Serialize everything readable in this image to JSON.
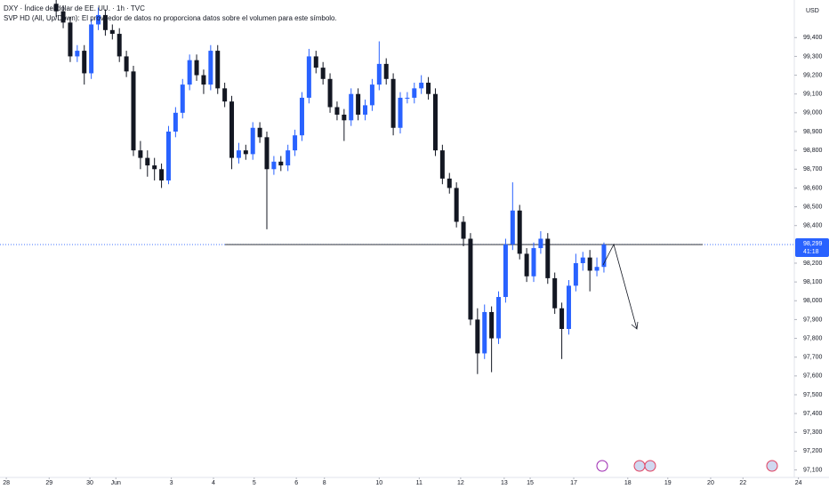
{
  "chart_data": {
    "type": "candlestick",
    "title": "DXY · Índice del dólar de EE. UU. · 1h · TVC",
    "subtitle": "SVP HD (All, Up/Down): El proveedor de datos no proporciona datos sobre el volumen para este símbolo.",
    "currency": "USD",
    "up_color": "#2962ff",
    "down_color": "#131722",
    "x": [
      8,
      9,
      10,
      11,
      12,
      13,
      14,
      15,
      16,
      17,
      18,
      19,
      20,
      21,
      22,
      23,
      24,
      25,
      26,
      27,
      28,
      29,
      30,
      31,
      32,
      33,
      34,
      35,
      36,
      37,
      38,
      39,
      40,
      41,
      42,
      43,
      44,
      45,
      46,
      47,
      48,
      49,
      50,
      51,
      52,
      53,
      54,
      55,
      56,
      57,
      58,
      59,
      60,
      61,
      62,
      63,
      64,
      65,
      66,
      67,
      68,
      69,
      70,
      71,
      72,
      73,
      74,
      75,
      76,
      77,
      78,
      79,
      80,
      81,
      82,
      83,
      84,
      85,
      86
    ],
    "open": [
      99580,
      99540,
      99480,
      99300,
      99330,
      99210,
      99470,
      99520,
      99440,
      99420,
      99300,
      99220,
      98800,
      98760,
      98720,
      98700,
      98640,
      98900,
      99000,
      99150,
      99280,
      99200,
      99150,
      99330,
      99130,
      99060,
      98760,
      98800,
      98780,
      98920,
      98870,
      98700,
      98740,
      98720,
      98800,
      98880,
      99080,
      99300,
      99240,
      99180,
      99030,
      98990,
      98960,
      99100,
      98990,
      99040,
      99150,
      99260,
      99180,
      98920,
      99080,
      99080,
      99130,
      99160,
      99100,
      98800,
      98650,
      98600,
      98420,
      98330,
      97900,
      97720,
      97940,
      97800,
      98020,
      98300,
      98480,
      98250,
      98130,
      98280,
      98330,
      98120,
      97960,
      97850,
      98080,
      98200,
      98230,
      98160,
      98180
    ],
    "high": [
      99610,
      99570,
      99510,
      99360,
      99360,
      99500,
      99560,
      99550,
      99470,
      99450,
      99330,
      99250,
      98850,
      98800,
      98760,
      98730,
      98930,
      99030,
      99180,
      99310,
      99310,
      99230,
      99360,
      99360,
      99160,
      99090,
      98840,
      98830,
      98950,
      98950,
      98900,
      98770,
      98770,
      98830,
      98910,
      99110,
      99340,
      99330,
      99270,
      99210,
      99060,
      99020,
      99130,
      99130,
      99070,
      99180,
      99380,
      99290,
      99210,
      99110,
      99110,
      99160,
      99200,
      99190,
      99130,
      98830,
      98680,
      98630,
      98450,
      98360,
      97960,
      97980,
      97970,
      98050,
      98330,
      98630,
      98510,
      98280,
      98310,
      98370,
      98360,
      98150,
      97990,
      98110,
      98250,
      98260,
      98270,
      98230,
      98310
    ],
    "low": [
      99510,
      99450,
      99270,
      99270,
      99150,
      99180,
      99440,
      99410,
      99390,
      99270,
      99190,
      98770,
      98700,
      98660,
      98640,
      98600,
      98620,
      98870,
      98970,
      99120,
      99170,
      99100,
      99120,
      99100,
      99030,
      98700,
      98730,
      98750,
      98750,
      98840,
      98380,
      98670,
      98690,
      98690,
      98770,
      98850,
      99050,
      99210,
      99150,
      99000,
      98960,
      98850,
      98930,
      98960,
      98960,
      99010,
      99120,
      99150,
      98880,
      98890,
      99050,
      99050,
      99100,
      99070,
      98770,
      98620,
      98570,
      98390,
      98290,
      97870,
      97610,
      97690,
      97620,
      97770,
      97990,
      98270,
      98220,
      98100,
      98100,
      98250,
      98090,
      97930,
      97690,
      97820,
      98050,
      98160,
      98050,
      98130,
      98150
    ],
    "close": [
      99540,
      99480,
      99300,
      99330,
      99210,
      99470,
      99520,
      99440,
      99420,
      99300,
      99220,
      98800,
      98760,
      98720,
      98700,
      98640,
      98900,
      99000,
      99150,
      99280,
      99200,
      99150,
      99330,
      99130,
      99060,
      98760,
      98800,
      98780,
      98920,
      98870,
      98700,
      98740,
      98720,
      98800,
      98880,
      99080,
      99300,
      99240,
      99180,
      99030,
      98990,
      98960,
      99100,
      98990,
      99040,
      99150,
      99260,
      99180,
      98920,
      99080,
      99080,
      99130,
      99160,
      99100,
      98800,
      98650,
      98600,
      98420,
      98330,
      97900,
      97720,
      97940,
      97800,
      98020,
      98300,
      98480,
      98250,
      98130,
      98280,
      98330,
      98120,
      97960,
      97850,
      98080,
      98200,
      98230,
      98160,
      98180,
      98299
    ],
    "xlim": [
      0,
      114
    ],
    "xticks": [
      {
        "value": 0.9,
        "label": "28"
      },
      {
        "value": 7.0,
        "label": "29"
      },
      {
        "value": 12.8,
        "label": "30"
      },
      {
        "value": 16.5,
        "label": "Jun"
      },
      {
        "value": 24.4,
        "label": "3"
      },
      {
        "value": 30.4,
        "label": "4"
      },
      {
        "value": 36.2,
        "label": "5"
      },
      {
        "value": 42.2,
        "label": "6"
      },
      {
        "value": 46.2,
        "label": "8"
      },
      {
        "value": 54.0,
        "label": "10"
      },
      {
        "value": 59.7,
        "label": "11"
      },
      {
        "value": 65.6,
        "label": "12"
      },
      {
        "value": 71.8,
        "label": "13"
      },
      {
        "value": 75.5,
        "label": "15"
      },
      {
        "value": 81.7,
        "label": "17"
      },
      {
        "value": 89.4,
        "label": "18"
      },
      {
        "value": 95.1,
        "label": "19"
      },
      {
        "value": 101.2,
        "label": "20"
      },
      {
        "value": 105.8,
        "label": "22"
      },
      {
        "value": 113.7,
        "label": "24"
      }
    ],
    "ylim": [
      97060,
      99600
    ],
    "yticks": [
      {
        "value": 97100,
        "label": "97,100"
      },
      {
        "value": 97200,
        "label": "97,200"
      },
      {
        "value": 97300,
        "label": "97,300"
      },
      {
        "value": 97400,
        "label": "97,400"
      },
      {
        "value": 97500,
        "label": "97,500"
      },
      {
        "value": 97600,
        "label": "97,600"
      },
      {
        "value": 97700,
        "label": "97,700"
      },
      {
        "value": 97800,
        "label": "97,800"
      },
      {
        "value": 97900,
        "label": "97,900"
      },
      {
        "value": 98000,
        "label": "98,000"
      },
      {
        "value": 98100,
        "label": "98,100"
      },
      {
        "value": 98200,
        "label": "98,200"
      },
      {
        "value": 98400,
        "label": "98,400"
      },
      {
        "value": 98500,
        "label": "98,500"
      },
      {
        "value": 98600,
        "label": "98,600"
      },
      {
        "value": 98700,
        "label": "98,700"
      },
      {
        "value": 98800,
        "label": "98,800"
      },
      {
        "value": 98900,
        "label": "98,900"
      },
      {
        "value": 99000,
        "label": "99,000"
      },
      {
        "value": 99100,
        "label": "99,100"
      },
      {
        "value": 99200,
        "label": "99,200"
      },
      {
        "value": 99300,
        "label": "99,300"
      },
      {
        "value": 99400,
        "label": "99,400"
      }
    ],
    "last_price": {
      "value": 98299,
      "label": "98,299"
    },
    "countdown": "41:18",
    "grid": false
  }
}
